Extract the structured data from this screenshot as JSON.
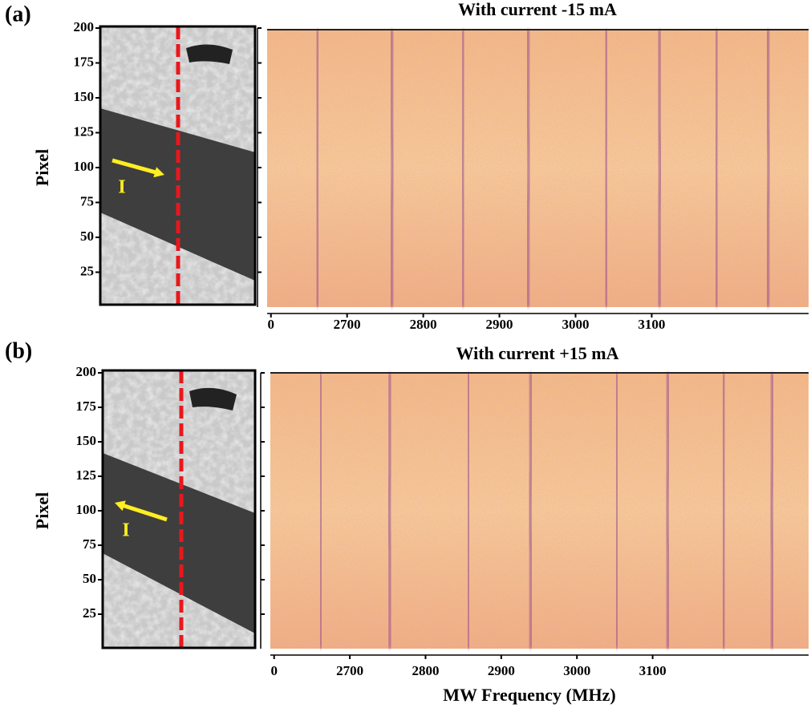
{
  "chart_data": [
    {
      "type": "heatmap",
      "panel_label": "(a)",
      "title": "With current -15 mA",
      "ylabel": "Pixel",
      "image_label": "I",
      "x": [
        2662,
        2758,
        2853,
        2937,
        3041,
        3109,
        3186,
        3252
      ],
      "color": "#8b3f8f",
      "xlim": [
        2595,
        3306
      ],
      "xticks": [
        {
          "value": 2600,
          "label": "0"
        },
        2700,
        2800,
        2900,
        3000,
        3100
      ],
      "ylim": [
        0,
        200
      ],
      "yticks": [
        25,
        50,
        75,
        100,
        125,
        150,
        175,
        200
      ]
    },
    {
      "type": "heatmap",
      "panel_label": "(b)",
      "title": "With current +15 mA",
      "ylabel": "Pixel",
      "image_label": "I",
      "xlabel": "MW Frequency (MHz)",
      "x": [
        2661,
        2754,
        2856,
        2940,
        3052,
        3121,
        3193,
        3259
      ],
      "color": "#8b3f8f",
      "xlim": [
        2595,
        3306
      ],
      "xticks": [
        {
          "value": 2600,
          "label": "0"
        },
        2700,
        2800,
        2900,
        3000,
        3100
      ],
      "ylim": [
        0,
        200
      ],
      "yticks": [
        25,
        50,
        75,
        100,
        125,
        150,
        175,
        200
      ]
    }
  ]
}
